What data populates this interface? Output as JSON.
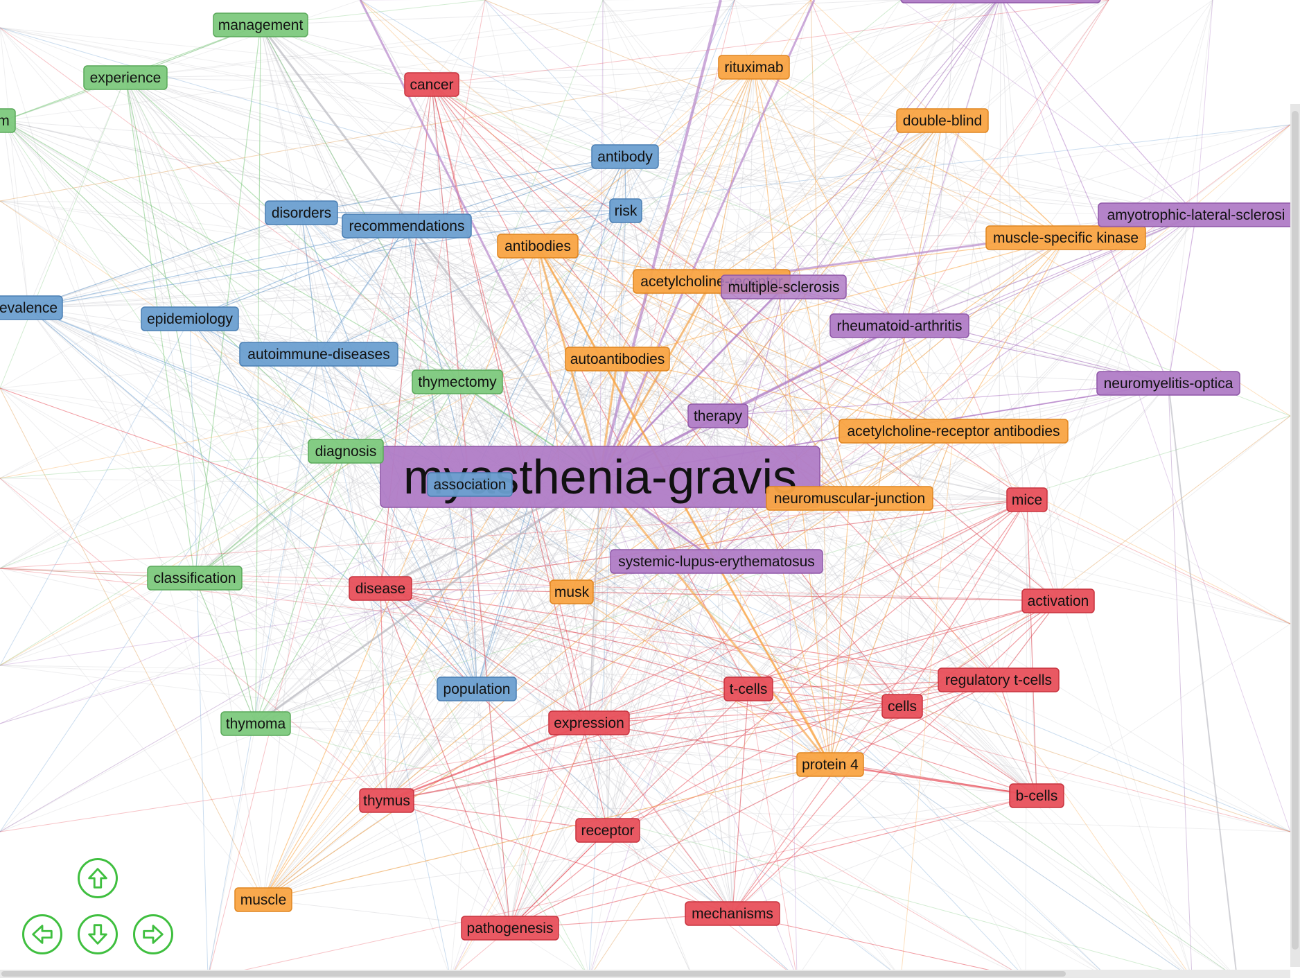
{
  "colors": {
    "green": "#7dc97d",
    "blue": "#6b9fd0",
    "red": "#e8505b",
    "orange": "#f9a443",
    "purple": "#b07cc6",
    "grey_edge": "#b4b4bc"
  },
  "nodes": [
    {
      "id": "myasthenia-gravis",
      "label": "myasthenia-gravis",
      "cluster": "purple",
      "hub": true
    },
    {
      "id": "management",
      "label": "management",
      "cluster": "green"
    },
    {
      "id": "experience",
      "label": "experience",
      "cluster": "green"
    },
    {
      "id": "m_cut",
      "label": "m",
      "cluster": "green"
    },
    {
      "id": "thymectomy",
      "label": "thymectomy",
      "cluster": "green"
    },
    {
      "id": "diagnosis",
      "label": "diagnosis",
      "cluster": "green"
    },
    {
      "id": "classification",
      "label": "classification",
      "cluster": "green"
    },
    {
      "id": "thymoma",
      "label": "thymoma",
      "cluster": "green"
    },
    {
      "id": "antibody",
      "label": "antibody",
      "cluster": "blue"
    },
    {
      "id": "risk",
      "label": "risk",
      "cluster": "blue"
    },
    {
      "id": "disorders",
      "label": "disorders",
      "cluster": "blue"
    },
    {
      "id": "recommendations",
      "label": "recommendations",
      "cluster": "blue"
    },
    {
      "id": "prevalence_cut",
      "label": "evalence",
      "cluster": "blue"
    },
    {
      "id": "epidemiology",
      "label": "epidemiology",
      "cluster": "blue"
    },
    {
      "id": "autoimmune-diseases",
      "label": "autoimmune-diseases",
      "cluster": "blue"
    },
    {
      "id": "association",
      "label": "association",
      "cluster": "blue"
    },
    {
      "id": "population",
      "label": "population",
      "cluster": "blue"
    },
    {
      "id": "cancer",
      "label": "cancer",
      "cluster": "red"
    },
    {
      "id": "disease",
      "label": "disease",
      "cluster": "red"
    },
    {
      "id": "mice",
      "label": "mice",
      "cluster": "red"
    },
    {
      "id": "activation",
      "label": "activation",
      "cluster": "red"
    },
    {
      "id": "regulatory-t-cells",
      "label": "regulatory t-cells",
      "cluster": "red"
    },
    {
      "id": "t-cells",
      "label": "t-cells",
      "cluster": "red"
    },
    {
      "id": "cells",
      "label": "cells",
      "cluster": "red"
    },
    {
      "id": "expression",
      "label": "expression",
      "cluster": "red"
    },
    {
      "id": "thymus",
      "label": "thymus",
      "cluster": "red"
    },
    {
      "id": "receptor",
      "label": "receptor",
      "cluster": "red"
    },
    {
      "id": "b-cells",
      "label": "b-cells",
      "cluster": "red"
    },
    {
      "id": "pathogenesis",
      "label": "pathogenesis",
      "cluster": "red"
    },
    {
      "id": "mechanisms",
      "label": "mechanisms",
      "cluster": "red"
    },
    {
      "id": "rituximab",
      "label": "rituximab",
      "cluster": "orange"
    },
    {
      "id": "double-blind",
      "label": "double-blind",
      "cluster": "orange"
    },
    {
      "id": "antibodies",
      "label": "antibodies",
      "cluster": "orange"
    },
    {
      "id": "acetylcholine-receptor",
      "label": "acetylcholine-receptor",
      "cluster": "orange"
    },
    {
      "id": "muscle-specific-kinase",
      "label": "muscle-specific kinase",
      "cluster": "orange"
    },
    {
      "id": "autoantibodies",
      "label": "autoantibodies",
      "cluster": "orange"
    },
    {
      "id": "acetylcholine-receptor-antibodies",
      "label": "acetylcholine-receptor antibodies",
      "cluster": "orange"
    },
    {
      "id": "neuromuscular-junction",
      "label": "neuromuscular-junction",
      "cluster": "orange"
    },
    {
      "id": "musk",
      "label": "musk",
      "cluster": "orange"
    },
    {
      "id": "protein-4",
      "label": "protein 4",
      "cluster": "orange"
    },
    {
      "id": "muscle",
      "label": "muscle",
      "cluster": "orange"
    },
    {
      "id": "multiple-sclerosis",
      "label": "multiple-sclerosis",
      "cluster": "purple"
    },
    {
      "id": "rheumatoid-arthritis",
      "label": "rheumatoid-arthritis",
      "cluster": "purple"
    },
    {
      "id": "amyotrophic-lateral-sclerosis",
      "label": "amyotrophic-lateral-sclerosi",
      "cluster": "purple"
    },
    {
      "id": "neuromyelitis-optica",
      "label": "neuromyelitis-optica",
      "cluster": "purple"
    },
    {
      "id": "therapy",
      "label": "therapy",
      "cluster": "purple"
    },
    {
      "id": "systemic-lupus-erythematosus",
      "label": "systemic-lupus-erythematosus",
      "cluster": "purple"
    },
    {
      "id": "top_purple_cut",
      "label": "",
      "cluster": "purple"
    }
  ],
  "controls": {
    "up": "up-arrow-icon",
    "left": "left-arrow-icon",
    "down": "down-arrow-icon",
    "right": "right-arrow-icon"
  }
}
